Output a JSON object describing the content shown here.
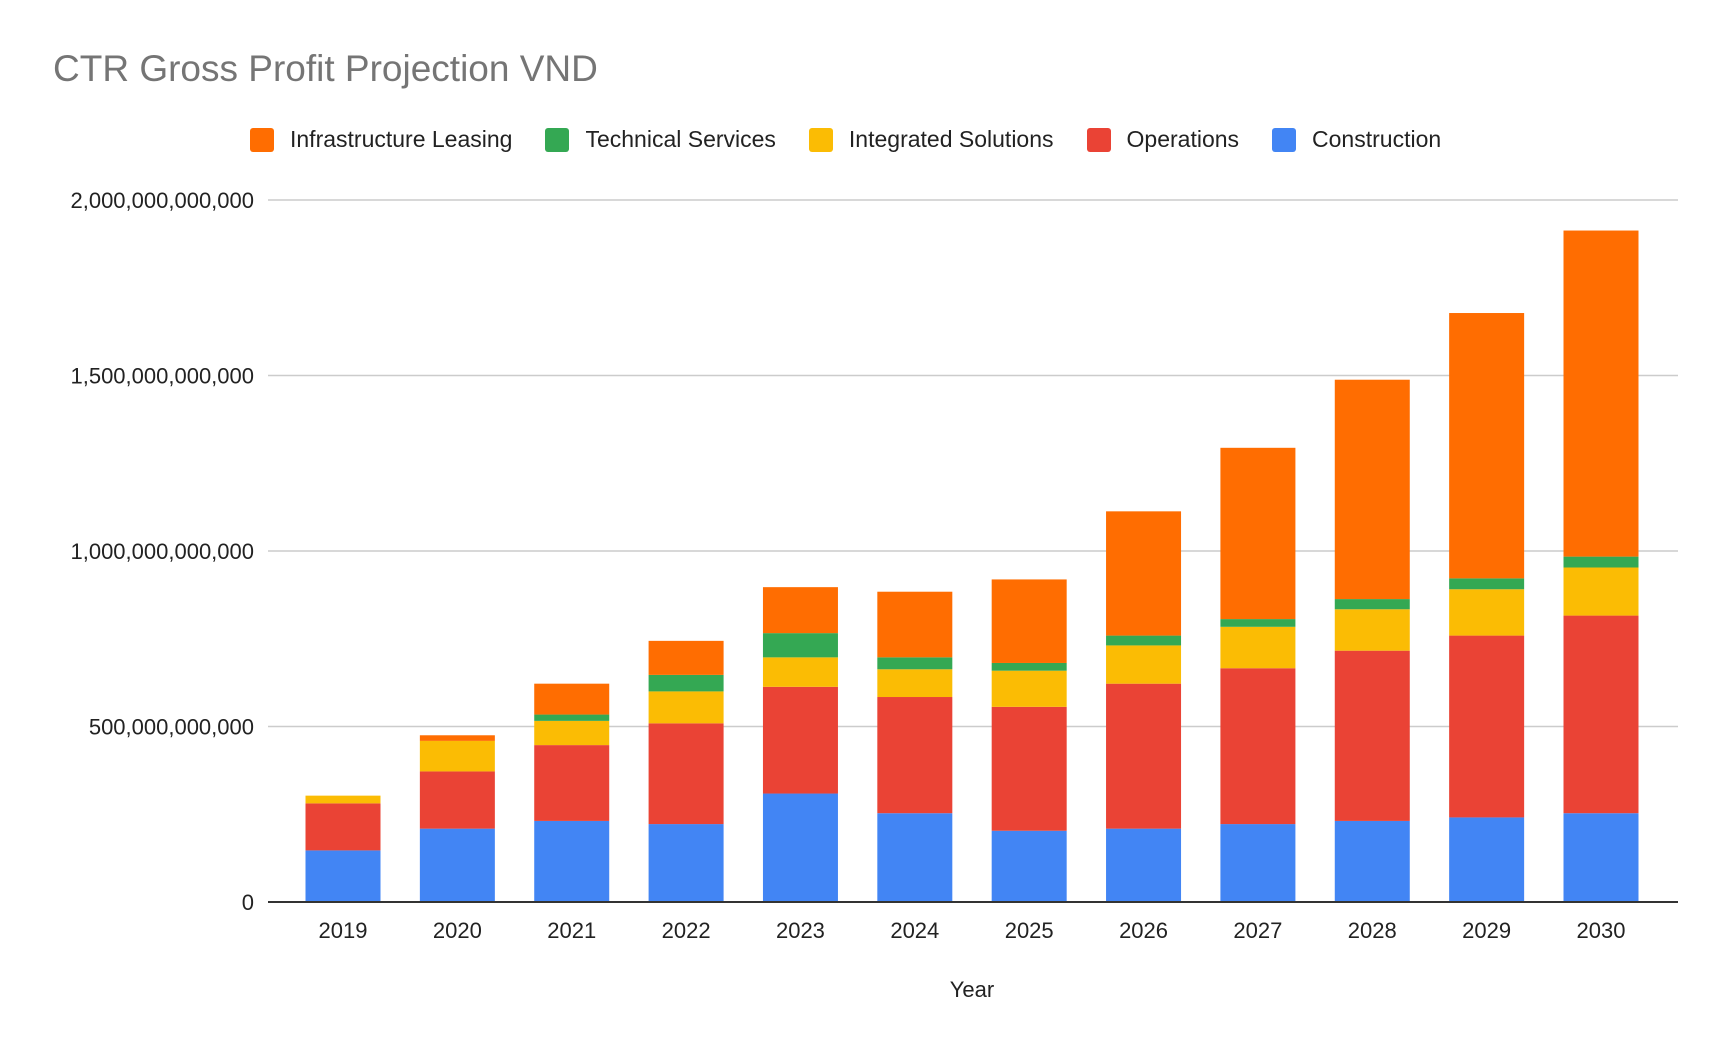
{
  "chart_data": {
    "type": "bar",
    "stacked": true,
    "title": "CTR Gross Profit Projection VND",
    "xlabel": "Year",
    "ylabel": "",
    "ylim": [
      0,
      2000000000000
    ],
    "yticks": [
      0,
      500000000000,
      1000000000000,
      1500000000000,
      2000000000000
    ],
    "ytick_labels": [
      "0",
      "500,000,000,000",
      "1,000,000,000,000",
      "1,500,000,000,000",
      "2,000,000,000,000"
    ],
    "grid": true,
    "legend_position": "top",
    "categories": [
      "2019",
      "2020",
      "2021",
      "2022",
      "2023",
      "2024",
      "2025",
      "2026",
      "2027",
      "2028",
      "2029",
      "2030"
    ],
    "legend_order": [
      "Infrastructure Leasing",
      "Technical Services",
      "Integrated Solutions",
      "Operations",
      "Construction"
    ],
    "series": [
      {
        "name": "Construction",
        "color": "#4285F4",
        "values": [
          147000000000.0,
          209000000000.0,
          231000000000.0,
          222000000000.0,
          309000000000.0,
          253000000000.0,
          203000000000.0,
          209000000000.0,
          222000000000.0,
          231000000000.0,
          241000000000.0,
          253000000000.0
        ]
      },
      {
        "name": "Operations",
        "color": "#EA4335",
        "values": [
          134000000000.0,
          163000000000.0,
          216000000000.0,
          287000000000.0,
          304000000000.0,
          331000000000.0,
          353000000000.0,
          413000000000.0,
          444000000000.0,
          485000000000.0,
          518000000000.0,
          563000000000.0
        ]
      },
      {
        "name": "Integrated Solutions",
        "color": "#FBBC04",
        "values": [
          22000000000.0,
          87000000000.0,
          69000000000.0,
          91000000000.0,
          84000000000.0,
          79000000000.0,
          103000000000.0,
          109000000000.0,
          118000000000.0,
          118000000000.0,
          132000000000.0,
          137000000000.0
        ]
      },
      {
        "name": "Technical Services",
        "color": "#34A853",
        "values": [
          0,
          0,
          18000000000.0,
          47000000000.0,
          69000000000.0,
          34000000000.0,
          22000000000.0,
          28000000000.0,
          22000000000.0,
          29000000000.0,
          31000000000.0,
          31000000000.0
        ]
      },
      {
        "name": "Infrastructure Leasing",
        "color": "#FF6D01",
        "values": [
          0,
          16000000000.0,
          88000000000.0,
          97000000000.0,
          131000000000.0,
          187000000000.0,
          238000000000.0,
          354000000000.0,
          488000000000.0,
          625000000000.0,
          756000000000.0,
          929000000000.0
        ]
      }
    ]
  }
}
